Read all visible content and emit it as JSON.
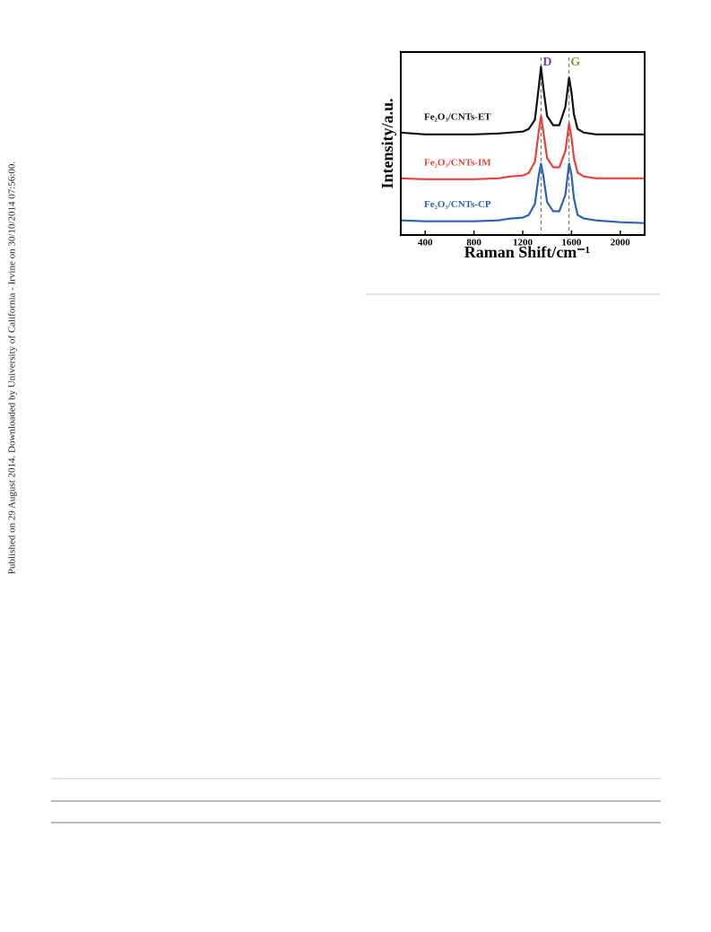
{
  "side_note": "Published on 29 August 2014. Downloaded by University of California - Irvine on 30/10/2014 07:56:00.",
  "figure": {
    "chart_data": {
      "type": "line",
      "x_label": "Raman Shift/cm⁻¹",
      "y_label": "Intensity/a.u.",
      "x": [
        200,
        400,
        600,
        800,
        1000,
        1100,
        1200,
        1250,
        1300,
        1330,
        1350,
        1370,
        1400,
        1450,
        1500,
        1550,
        1580,
        1600,
        1620,
        1650,
        1700,
        1800,
        2000,
        2200
      ],
      "series": [
        {
          "name": "Fe₂O₃/CNTs-ET",
          "color": "#111111",
          "values": [
            56,
            55,
            55,
            55,
            55.5,
            56,
            56.5,
            58,
            63,
            80,
            92,
            80,
            65,
            60,
            60,
            70,
            86,
            78,
            66,
            58,
            56,
            55,
            55,
            55
          ]
        },
        {
          "name": "Fe₂O₃/CNTs-IM",
          "color": "#e8413c",
          "values": [
            31,
            30.5,
            30.5,
            30.5,
            31,
            32,
            32.5,
            34,
            40,
            56,
            65,
            56,
            42,
            37,
            37,
            46,
            61,
            53,
            42,
            34,
            32,
            31,
            31,
            31
          ]
        },
        {
          "name": "Fe₂O₃/CNTs-CP",
          "color": "#2a62b8",
          "values": [
            8,
            7.5,
            7.5,
            7.5,
            8,
            9,
            9.5,
            11,
            17,
            32,
            39,
            32,
            18,
            13,
            13,
            22,
            39,
            33,
            20,
            11,
            9,
            8,
            7,
            6.5
          ]
        }
      ],
      "annotations": [
        {
          "label": "D",
          "x": 1350,
          "color": "#7b3fa0"
        },
        {
          "label": "G",
          "x": 1580,
          "color": "#8a9a3a"
        }
      ],
      "xlim": [
        200,
        2200
      ],
      "ylim": [
        0,
        100
      ],
      "xticks": [
        400,
        800,
        1200,
        1600,
        2000
      ]
    }
  }
}
